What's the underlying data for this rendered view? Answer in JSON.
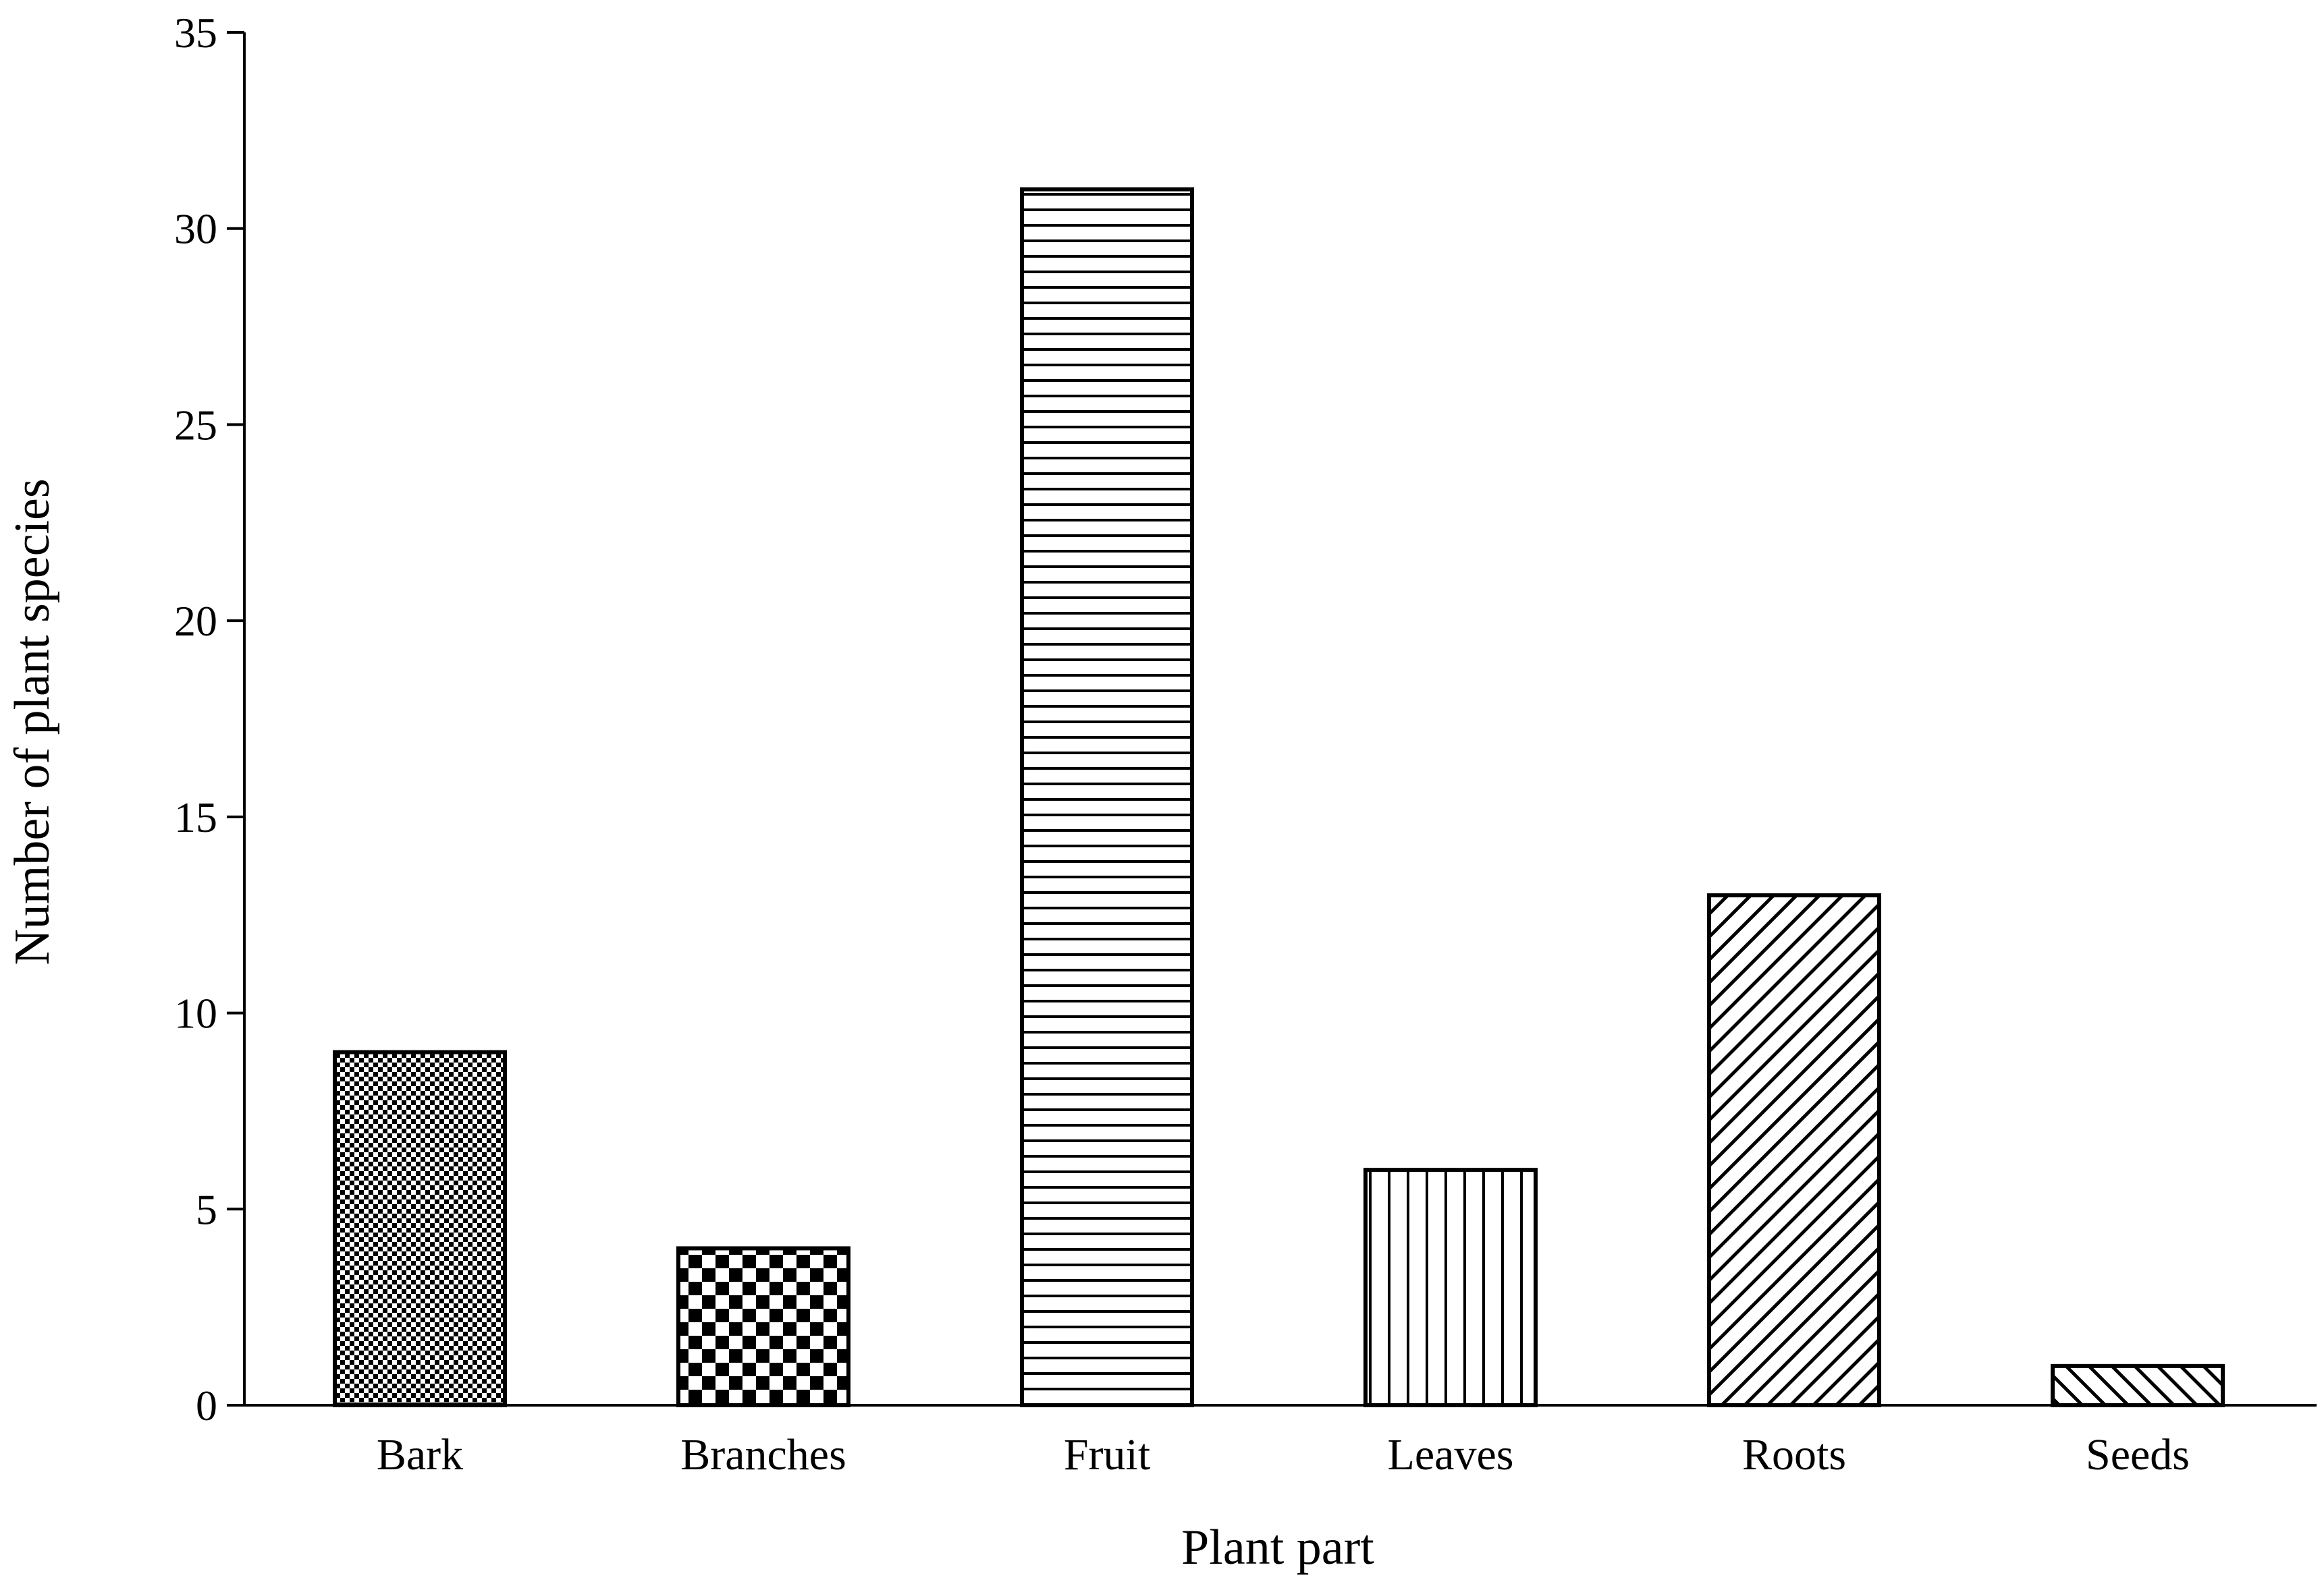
{
  "chart_data": {
    "type": "bar",
    "title": "",
    "xlabel": "Plant part",
    "ylabel": "Number of plant species",
    "categories": [
      "Bark",
      "Branches",
      "Fruit",
      "Leaves",
      "Roots",
      "Seeds"
    ],
    "values": [
      9,
      4,
      31,
      6,
      13,
      1
    ],
    "ylim": [
      0,
      35
    ],
    "yticks": [
      0,
      5,
      10,
      15,
      20,
      25,
      30,
      35
    ],
    "grid": false,
    "legend": "none",
    "bar_patterns": [
      "fine-checker",
      "coarse-checker",
      "horizontal-lines",
      "vertical-lines",
      "diagonal-lines",
      "diagonal-lines-reverse"
    ],
    "colors": {
      "bar_stroke": "#000000",
      "bar_fill": "#ffffff",
      "axis": "#000000"
    }
  }
}
